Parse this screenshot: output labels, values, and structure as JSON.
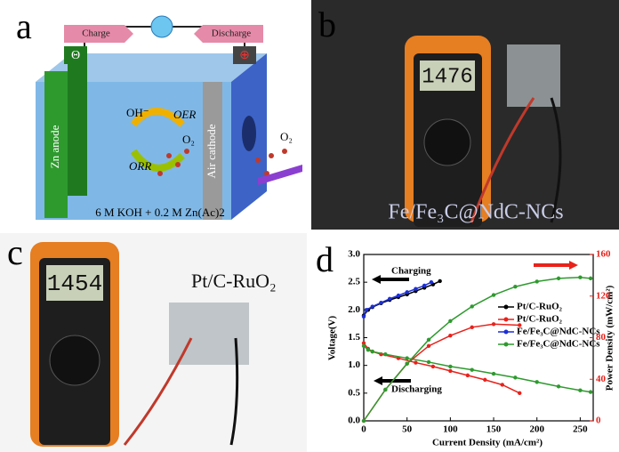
{
  "panels": {
    "a": "a",
    "b": "b",
    "c": "c",
    "d": "d"
  },
  "diagram": {
    "charge": "Charge",
    "discharge": "Discharge",
    "minus": "Θ",
    "plus": "⊕",
    "anode": "Zn anode",
    "cathode": "Air cathode",
    "oh": "OH⁻",
    "oer": "OER",
    "orr": "ORR",
    "o2_inner": "O₂",
    "o2_outer": "O₂",
    "electrolyte": "6 M KOH + 0.2 M Zn(Ac)2"
  },
  "photo_b": {
    "display": "1476",
    "caption": "Fe/Fe₃C@NdC-NCs"
  },
  "photo_c": {
    "display": "1454",
    "caption": "Pt/C-RuO₂"
  },
  "chart_data": {
    "type": "line",
    "xlabel": "Current Density (mA/cm²)",
    "ylabel": "Voltage(V)",
    "y2label": "Power Density (mW/cm²)",
    "annotations": [
      "Charging",
      "Discharging"
    ],
    "xlim": [
      0,
      265
    ],
    "xticks": [
      0,
      50,
      100,
      150,
      200,
      250
    ],
    "ylim": [
      0,
      3
    ],
    "yticks": [
      {
        "value": 0,
        "label": "0.0"
      },
      0.5,
      {
        "value": 1,
        "label": "1.0"
      },
      1.5,
      {
        "value": 2,
        "label": "2.0"
      },
      2.5,
      {
        "value": 3,
        "label": "3.0"
      }
    ],
    "y2lim": [
      0,
      160
    ],
    "y2ticks": [
      0,
      40,
      80,
      120,
      160
    ],
    "series": [
      {
        "name": "Pt/C-RuO₂",
        "color": "#000000",
        "x": [
          0,
          5,
          10,
          20,
          30,
          40,
          50,
          60,
          70,
          80,
          88
        ],
        "values": [
          1.9,
          2.0,
          2.05,
          2.12,
          2.18,
          2.23,
          2.28,
          2.34,
          2.4,
          2.46,
          2.52
        ]
      },
      {
        "name": "Pt/C-RuO₂",
        "color": "#e8221b",
        "x": [
          0,
          5,
          10,
          20,
          40,
          60,
          80,
          100,
          120,
          140,
          160,
          180
        ],
        "values": [
          1.4,
          1.3,
          1.25,
          1.2,
          1.13,
          1.05,
          0.98,
          0.9,
          0.82,
          0.74,
          0.65,
          0.5
        ]
      },
      {
        "name": "Fe/Fe₃C@NdC-NCs",
        "color": "#1c2fd6",
        "x": [
          0,
          3,
          10,
          20,
          30,
          40,
          50,
          60,
          70,
          78
        ],
        "values": [
          1.88,
          2.0,
          2.06,
          2.13,
          2.2,
          2.26,
          2.32,
          2.38,
          2.44,
          2.5
        ]
      },
      {
        "name": "Fe/Fe₃C@NdC-NCs",
        "color": "#2e9a2e",
        "x": [
          0,
          5,
          10,
          25,
          50,
          75,
          100,
          125,
          150,
          175,
          200,
          225,
          250,
          262
        ],
        "values": [
          1.35,
          1.28,
          1.25,
          1.2,
          1.13,
          1.06,
          0.98,
          0.92,
          0.85,
          0.78,
          0.7,
          0.62,
          0.55,
          0.52
        ]
      },
      {
        "color": "#e8221b",
        "axis": "y2",
        "x": [
          0,
          25,
          50,
          75,
          100,
          125,
          150,
          180
        ],
        "values": [
          0,
          30,
          55,
          72,
          82,
          90,
          93,
          92
        ]
      },
      {
        "color": "#2e9a2e",
        "axis": "y2",
        "x": [
          0,
          25,
          50,
          75,
          100,
          125,
          150,
          175,
          200,
          225,
          250,
          262
        ],
        "values": [
          0,
          30,
          55,
          78,
          96,
          110,
          121,
          129,
          134,
          137,
          138,
          137
        ]
      }
    ]
  }
}
